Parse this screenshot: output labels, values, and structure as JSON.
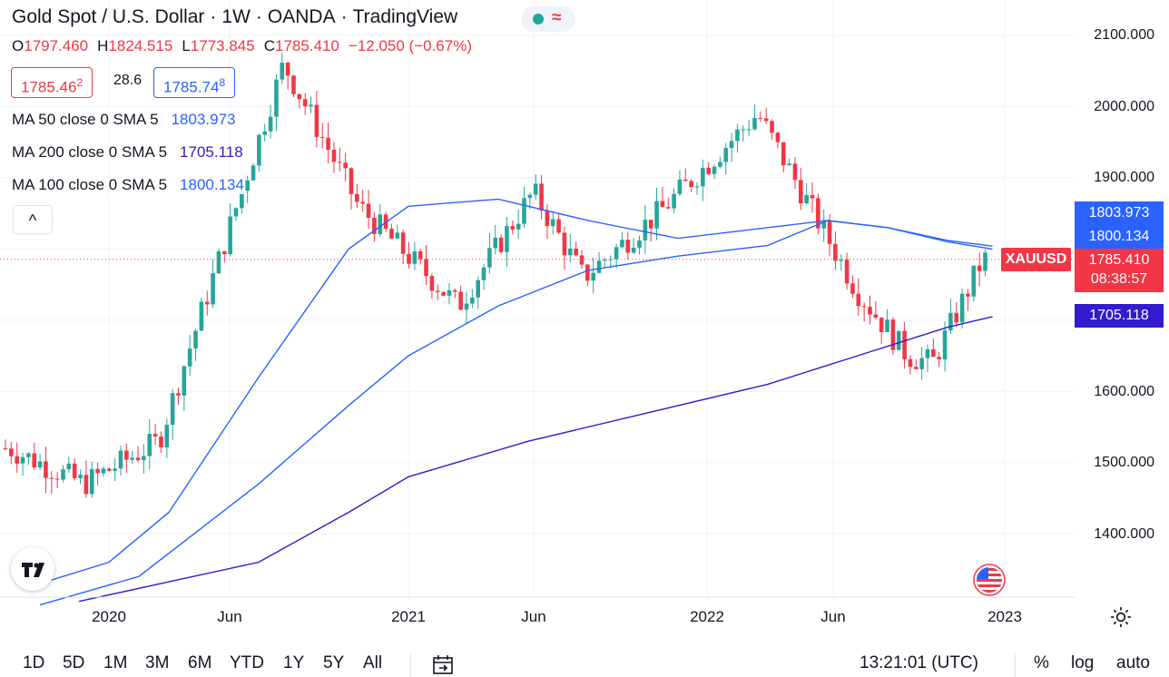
{
  "header": {
    "title": "Gold Spot / U.S. Dollar",
    "interval": "1W",
    "broker": "OANDA",
    "platform": "TradingView",
    "separator": "·"
  },
  "status_icons": [
    "green-dot-icon",
    "wave-icon"
  ],
  "ohlc": {
    "o_label": "O",
    "o": "1797.460",
    "h_label": "H",
    "h": "1824.515",
    "l_label": "L",
    "l": "1773.845",
    "c_label": "C",
    "c": "1785.410",
    "change": "−12.050 (−0.67%)"
  },
  "quote": {
    "sell_main": "1785.46",
    "sell_sup": "2",
    "spread": "28.6",
    "buy_main": "1785.74",
    "buy_sup": "8"
  },
  "indicators": [
    {
      "label": "MA 50 close 0 SMA 5",
      "value": "1803.973",
      "color": "#2962ff"
    },
    {
      "label": "MA 200 close 0 SMA 5",
      "value": "1705.118",
      "color": "#311bcc"
    },
    {
      "label": "MA 100 close 0 SMA 5",
      "value": "1800.134",
      "color": "#2962ff"
    }
  ],
  "collapse_glyph": "^",
  "price_axis": {
    "ticks": [
      "2100.000",
      "2000.000",
      "1900.000",
      "1600.000",
      "1500.000",
      "1400.000"
    ],
    "badges": {
      "ma50": "1803.973",
      "ma100": "1800.134",
      "last": "1785.410",
      "countdown": "08:38:57",
      "ma200": "1705.118"
    },
    "symbol": "XAUUSD"
  },
  "time_axis": [
    "2020",
    "Jun",
    "2021",
    "Jun",
    "2022",
    "Jun",
    "2023"
  ],
  "toolbar": {
    "timeframes": [
      "1D",
      "5D",
      "1M",
      "3M",
      "6M",
      "YTD",
      "1Y",
      "5Y",
      "All"
    ],
    "clock": "13:21:01 (UTC)",
    "percent": "%",
    "log": "log",
    "auto": "auto"
  },
  "colors": {
    "up": "#26a69a",
    "down": "#f23645",
    "ma50": "#2962ff",
    "ma100": "#2962ff",
    "ma200": "#311bcc"
  },
  "chart_data": {
    "type": "candlestick",
    "symbol": "XAUUSD",
    "interval": "1W",
    "ylim": [
      1320,
      2110
    ],
    "x_range": [
      "2019-09",
      "2022-12"
    ],
    "key_prices": [
      {
        "date": "2019-09",
        "price": 1520
      },
      {
        "date": "2019-12",
        "price": 1470
      },
      {
        "date": "2020-03",
        "price": 1530
      },
      {
        "date": "2020-08",
        "price": 2060
      },
      {
        "date": "2020-11",
        "price": 1860
      },
      {
        "date": "2021-03",
        "price": 1720
      },
      {
        "date": "2021-06",
        "price": 1880
      },
      {
        "date": "2021-08",
        "price": 1760
      },
      {
        "date": "2021-11",
        "price": 1850
      },
      {
        "date": "2022-03",
        "price": 1990
      },
      {
        "date": "2022-07",
        "price": 1740
      },
      {
        "date": "2022-09",
        "price": 1650
      },
      {
        "date": "2022-10",
        "price": 1640
      },
      {
        "date": "2022-12",
        "price": 1785
      }
    ],
    "series": [
      {
        "name": "MA 50 close 0 SMA 5",
        "last": 1803.973,
        "points": [
          [
            2019.77,
            1330
          ],
          [
            2020.0,
            1360
          ],
          [
            2020.2,
            1430
          ],
          [
            2020.5,
            1620
          ],
          [
            2020.8,
            1800
          ],
          [
            2021.0,
            1860
          ],
          [
            2021.3,
            1870
          ],
          [
            2021.6,
            1840
          ],
          [
            2021.9,
            1815
          ],
          [
            2022.2,
            1830
          ],
          [
            2022.4,
            1840
          ],
          [
            2022.6,
            1830
          ],
          [
            2022.8,
            1812
          ],
          [
            2022.95,
            1804
          ]
        ]
      },
      {
        "name": "MA 100 close 0 SMA 5",
        "last": 1800.134,
        "points": [
          [
            2019.77,
            1300
          ],
          [
            2020.1,
            1340
          ],
          [
            2020.5,
            1470
          ],
          [
            2020.8,
            1580
          ],
          [
            2021.0,
            1650
          ],
          [
            2021.3,
            1720
          ],
          [
            2021.6,
            1770
          ],
          [
            2021.9,
            1790
          ],
          [
            2022.2,
            1805
          ],
          [
            2022.4,
            1840
          ],
          [
            2022.6,
            1830
          ],
          [
            2022.8,
            1810
          ],
          [
            2022.95,
            1800
          ]
        ]
      },
      {
        "name": "MA 200 close 0 SMA 5",
        "last": 1705.118,
        "points": [
          [
            2019.9,
            1305
          ],
          [
            2020.5,
            1360
          ],
          [
            2020.8,
            1430
          ],
          [
            2021.0,
            1480
          ],
          [
            2021.4,
            1530
          ],
          [
            2021.8,
            1570
          ],
          [
            2022.2,
            1610
          ],
          [
            2022.5,
            1650
          ],
          [
            2022.8,
            1690
          ],
          [
            2022.95,
            1705
          ]
        ]
      }
    ]
  }
}
